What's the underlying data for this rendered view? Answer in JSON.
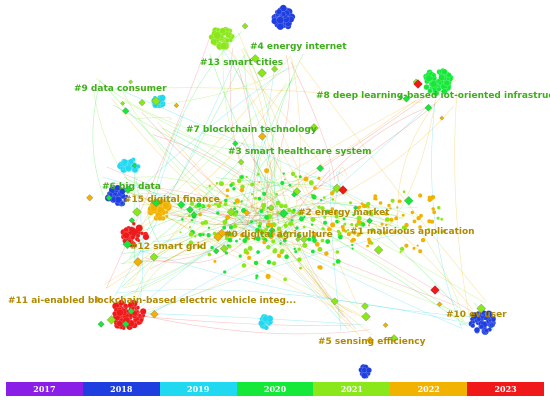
{
  "clusters": [
    {
      "id": "c0",
      "label": "#0 digital agriculture",
      "color": "#b08a00"
    },
    {
      "id": "c1",
      "label": "#1 malicious application",
      "color": "#b08a00"
    },
    {
      "id": "c2",
      "label": "#2 energy market",
      "color": "#b08a00"
    },
    {
      "id": "c3",
      "label": "#3 smart healthcare system",
      "color": "#3fae1e"
    },
    {
      "id": "c4",
      "label": "#4 energy internet",
      "color": "#3fae1e"
    },
    {
      "id": "c5",
      "label": "#5 sensing efficiency",
      "color": "#b08a00"
    },
    {
      "id": "c6",
      "label": "#6 big data",
      "color": "#3fae1e"
    },
    {
      "id": "c7",
      "label": "#7 blockchain technology",
      "color": "#3fae1e"
    },
    {
      "id": "c8",
      "label": "#8 deep learning-based iot-oriented infrastructure",
      "color": "#3fae1e"
    },
    {
      "id": "c9",
      "label": "#9 data consumer",
      "color": "#3fae1e"
    },
    {
      "id": "c10",
      "label": "#10 ev user",
      "color": "#b08a00"
    },
    {
      "id": "c11",
      "label": "#11 ai-enabled blockchain-based electric vehicle integ...",
      "color": "#b08a00"
    },
    {
      "id": "c12",
      "label": "#12 smart grid",
      "color": "#b08a00"
    },
    {
      "id": "c13",
      "label": "#13 smart cities",
      "color": "#3fae1e"
    },
    {
      "id": "c15",
      "label": "#15 digital finance",
      "color": "#b08a00"
    }
  ],
  "timeline": [
    {
      "year": "2017",
      "color": "#8a1ee6"
    },
    {
      "year": "2018",
      "color": "#1f3ee0"
    },
    {
      "year": "2019",
      "color": "#20d8f0"
    },
    {
      "year": "2020",
      "color": "#16e83a"
    },
    {
      "year": "2021",
      "color": "#8ae81a"
    },
    {
      "year": "2022",
      "color": "#f2b200"
    },
    {
      "year": "2023",
      "color": "#f01818"
    }
  ]
}
